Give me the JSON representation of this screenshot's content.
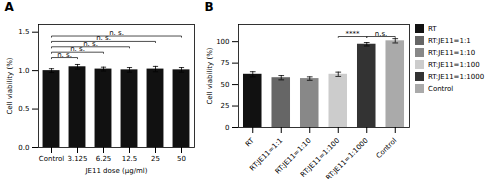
{
  "chart_data": [
    {
      "type": "bar",
      "title": "A",
      "categories": [
        "Control",
        "3.125",
        "6.25",
        "12.5",
        "25",
        "50"
      ],
      "values": [
        1.0,
        1.05,
        1.02,
        1.01,
        1.02,
        1.01
      ],
      "errors": [
        0.025,
        0.03,
        0.025,
        0.03,
        0.035,
        0.03
      ],
      "color": "#111111",
      "xlabel": "JE11 dose (μg/ml)",
      "ylabel": "Cell viability (%)",
      "ylim": [
        0.0,
        1.6
      ],
      "yticks": [
        {
          "value": 0,
          "label": "0.0"
        },
        0.5,
        {
          "value": 1,
          "label": "1.0"
        },
        1.5
      ],
      "significance": [
        {
          "from": "Control",
          "to": "3.125",
          "y": 1.17,
          "label": "n. s."
        },
        {
          "from": "Control",
          "to": "6.25",
          "y": 1.24,
          "label": "n. s."
        },
        {
          "from": "Control",
          "to": "12.5",
          "y": 1.31,
          "label": "n. s."
        },
        {
          "from": "Control",
          "to": "25",
          "y": 1.38,
          "label": "n. s."
        },
        {
          "from": "Control",
          "to": "50",
          "y": 1.45,
          "label": "n. s."
        }
      ]
    },
    {
      "type": "bar",
      "title": "B",
      "categories": [
        "RT",
        "RT:JE11=1:1",
        "RT:JE11=1:10",
        "RT:JE11=1:100",
        "RT:JE11=1:1000",
        "Control"
      ],
      "values": [
        62,
        58,
        57,
        62,
        97,
        101
      ],
      "errors": [
        3.0,
        2.5,
        2.0,
        2.5,
        2.0,
        2.5
      ],
      "colors": [
        "#111111",
        "#666666",
        "#888888",
        "#cccccc",
        "#333333",
        "#aaaaaa"
      ],
      "ylabel": "Cell viability (%)",
      "ylim": [
        0,
        120
      ],
      "yticks": [
        0,
        25,
        50,
        75,
        100
      ],
      "legend": "right",
      "significance": [
        {
          "from": "RT:JE11=1:100",
          "to": "RT:JE11=1:1000",
          "y": 106,
          "label": "****"
        },
        {
          "from": "RT:JE11=1:1000",
          "to": "Control",
          "y": 106,
          "label": "n.s."
        }
      ]
    }
  ]
}
